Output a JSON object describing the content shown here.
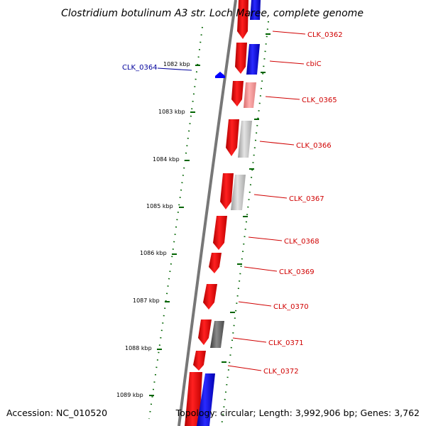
{
  "title": "Clostridium botulinum A3 str. Loch Maree, complete genome",
  "footer": {
    "accession": "Accession: NC_010520",
    "topology": "Topology: circular; Length: 3,992,906 bp; Genes: 3,762"
  },
  "ticks": [
    "1082 kbp",
    "1083 kbp",
    "1084 kbp",
    "1085 kbp",
    "1086 kbp",
    "1087 kbp",
    "1088 kbp",
    "1089 kbp"
  ],
  "gene_labels": {
    "clk_0362": "CLK_0362",
    "cbic": "cbiC",
    "clk_0364": "CLK_0364",
    "clk_0365": "CLK_0365",
    "clk_0366": "CLK_0366",
    "clk_0367": "CLK_0367",
    "clk_0368": "CLK_0368",
    "clk_0369": "CLK_0369",
    "clk_0370": "CLK_0370",
    "clk_0371": "CLK_0371",
    "clk_0372": "CLK_0372"
  },
  "colors": {
    "forward_gene": "#ff0000",
    "reverse_gene": "#0000ff",
    "backbone": "#777777",
    "ticks": "#006400",
    "label_red": "#d00000",
    "label_blue": "#00009c"
  }
}
